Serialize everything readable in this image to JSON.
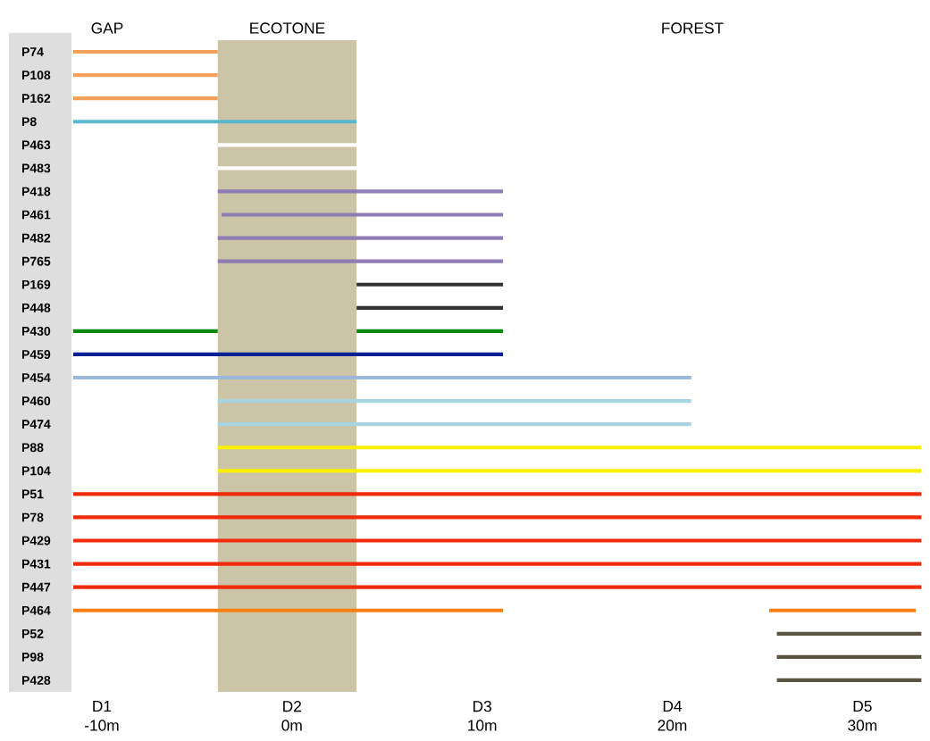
{
  "chart_data": {
    "type": "bar",
    "orientation": "horizontal",
    "categories": [
      "P74",
      "P108",
      "P162",
      "P8",
      "P463",
      "P483",
      "P418",
      "P461",
      "P482",
      "P765",
      "P169",
      "P448",
      "P430",
      "P459",
      "P454",
      "P460",
      "P474",
      "P88",
      "P104",
      "P51",
      "P78",
      "P429",
      "P431",
      "P447",
      "P464",
      "P52",
      "P98",
      "P428"
    ],
    "series": [
      {
        "base": [
          -11.5,
          -11.5,
          -11.5,
          -11.5,
          -3.9,
          -3.9,
          -3.9,
          -3.7,
          -3.9,
          -3.9,
          3.4,
          3.4,
          -11.5,
          -11.5,
          -11.5,
          -3.9,
          -3.9,
          -3.9,
          -3.9,
          -11.5,
          -11.5,
          -11.5,
          -11.5,
          -11.5,
          -11.5,
          25.5,
          25.5,
          25.5
        ],
        "values": [
          7.6,
          7.6,
          7.6,
          14.9,
          7.3,
          7.3,
          15.0,
          14.8,
          15.0,
          15.0,
          7.7,
          7.7,
          7.6,
          22.6,
          32.5,
          24.9,
          24.9,
          37.0,
          37.0,
          44.6,
          44.6,
          44.6,
          44.6,
          44.6,
          22.6,
          7.6,
          7.6,
          7.6
        ],
        "colors": [
          "#f5a05a",
          "#f5a05a",
          "#f5a05a",
          "#5bb8cc",
          "#ffffff",
          "#ffffff",
          "#8e7cb4",
          "#8e7cb4",
          "#8e7cb4",
          "#8e7cb4",
          "#333333",
          "#333333",
          "#0a8a0a",
          "#0a2196",
          "#9ab8dc",
          "#a6d4e0",
          "#a6d4e0",
          "#f8f000",
          "#f8f000",
          "#f02a0a",
          "#f02a0a",
          "#f02a0a",
          "#f02a0a",
          "#f02a0a",
          "#f77f12",
          "#5a5540",
          "#5a5540",
          "#5a5540"
        ]
      },
      {
        "base": [
          null,
          null,
          null,
          null,
          null,
          null,
          null,
          null,
          null,
          null,
          null,
          null,
          3.4,
          null,
          null,
          null,
          null,
          null,
          null,
          null,
          null,
          null,
          null,
          null,
          25.1,
          null,
          null,
          null
        ],
        "values": [
          null,
          null,
          null,
          null,
          null,
          null,
          null,
          null,
          null,
          null,
          null,
          null,
          7.7,
          null,
          null,
          null,
          null,
          null,
          null,
          null,
          null,
          null,
          null,
          null,
          7.7,
          null,
          null,
          null
        ],
        "colors": [
          null,
          null,
          null,
          null,
          null,
          null,
          null,
          null,
          null,
          null,
          null,
          null,
          "#0a8a0a",
          null,
          null,
          null,
          null,
          null,
          null,
          null,
          null,
          null,
          null,
          null,
          "#f77f12",
          null,
          null,
          null
        ]
      }
    ],
    "xlim": [
      -11.5,
      33.1
    ],
    "xticks": [
      {
        "value": -10,
        "label": "-10m"
      },
      {
        "value": 0,
        "label": "0m"
      },
      {
        "value": 10,
        "label": "10m"
      },
      {
        "value": 20,
        "label": "20m"
      },
      {
        "value": 30,
        "label": "30m"
      }
    ],
    "bands": [
      {
        "axis": "x",
        "from": -3.9,
        "to": 3.4,
        "label": "ECOTONE",
        "color": "#ccc4a6"
      }
    ],
    "annotations": [
      "GAP",
      "FOREST",
      "D1",
      "D2",
      "D3",
      "D4",
      "D5"
    ]
  }
}
